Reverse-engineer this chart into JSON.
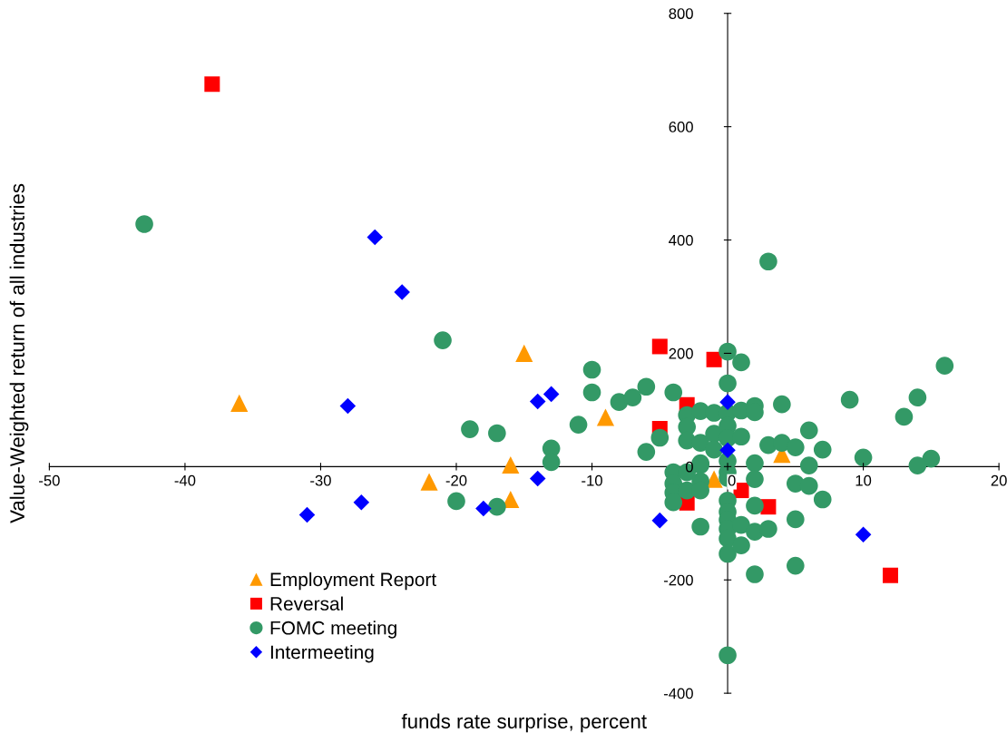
{
  "chart_data": {
    "type": "scatter",
    "xlabel": "funds rate surprise, percent",
    "ylabel": "Value-Weighted return of all industries",
    "xlim": [
      -50,
      20
    ],
    "xticks": [
      -50,
      -40,
      -30,
      -20,
      -10,
      0,
      10,
      20
    ],
    "ylim": [
      -400,
      800
    ],
    "yticks": [
      -400,
      -200,
      0,
      200,
      400,
      600,
      800
    ],
    "grid": false,
    "legend": "bottom left",
    "series": [
      {
        "name": "Employment Report",
        "color": "#ff9900",
        "marker": "triangle",
        "x": [
          -36,
          -15,
          -9,
          -16,
          -22,
          -16,
          -1,
          4
        ],
        "values": [
          112,
          200,
          87,
          3,
          -27,
          -58,
          -22,
          22
        ]
      },
      {
        "name": "Reversal",
        "color": "#ff0000",
        "marker": "square",
        "x": [
          -38,
          -5,
          -1,
          -3,
          -5,
          -3,
          1,
          3,
          12
        ],
        "values": [
          675,
          212,
          189,
          109,
          67,
          -64,
          -42,
          -71,
          -192
        ]
      },
      {
        "name": "FOMC meeting",
        "color": "#339966",
        "marker": "circle",
        "x": [
          -43,
          -21,
          -19,
          -17,
          -20,
          -17,
          -13,
          -13,
          -11,
          -10,
          -10,
          -8,
          -7,
          -6,
          -6,
          -5,
          -4,
          -3,
          -3,
          -3,
          -2,
          -1,
          -2,
          -1,
          -1,
          -2,
          -4,
          -4,
          -4,
          -4,
          -3,
          -3,
          -2,
          -2,
          -2,
          -2,
          0,
          0,
          0,
          0,
          0,
          0,
          0,
          0,
          0,
          0,
          0,
          0,
          0,
          0,
          0,
          3,
          1,
          1,
          2,
          2,
          4,
          9,
          14,
          13,
          16,
          6,
          1,
          3,
          4,
          5,
          7,
          10,
          15,
          14,
          2,
          6,
          2,
          5,
          6,
          7,
          2,
          5,
          1,
          2,
          3,
          1,
          5,
          2
        ],
        "values": [
          428,
          223,
          66,
          59,
          -61,
          -71,
          32,
          8,
          74,
          171,
          131,
          114,
          122,
          141,
          26,
          51,
          131,
          91,
          70,
          46,
          98,
          95,
          42,
          58,
          30,
          3,
          -10,
          -30,
          -46,
          -63,
          -10,
          -42,
          6,
          -26,
          -42,
          -106,
          203,
          147,
          95,
          72,
          50,
          10,
          -10,
          -20,
          -60,
          -80,
          -94,
          -110,
          -127,
          -154,
          -333,
          362,
          184,
          99,
          107,
          96,
          110,
          118,
          122,
          88,
          178,
          64,
          53,
          38,
          42,
          34,
          30,
          16,
          14,
          2,
          6,
          2,
          -22,
          -30,
          -34,
          -58,
          -69,
          -93,
          -103,
          -115,
          -110,
          -139,
          -175,
          -190
        ]
      },
      {
        "name": "Intermeeting",
        "color": "#0000ff",
        "marker": "diamond",
        "x": [
          -26,
          -24,
          -28,
          -31,
          -27,
          -18,
          -14,
          -14,
          -13,
          -5,
          0,
          0,
          10
        ],
        "values": [
          405,
          308,
          107,
          -85,
          -63,
          -74,
          -21,
          115,
          128,
          -95,
          114,
          29,
          -120
        ]
      }
    ]
  }
}
